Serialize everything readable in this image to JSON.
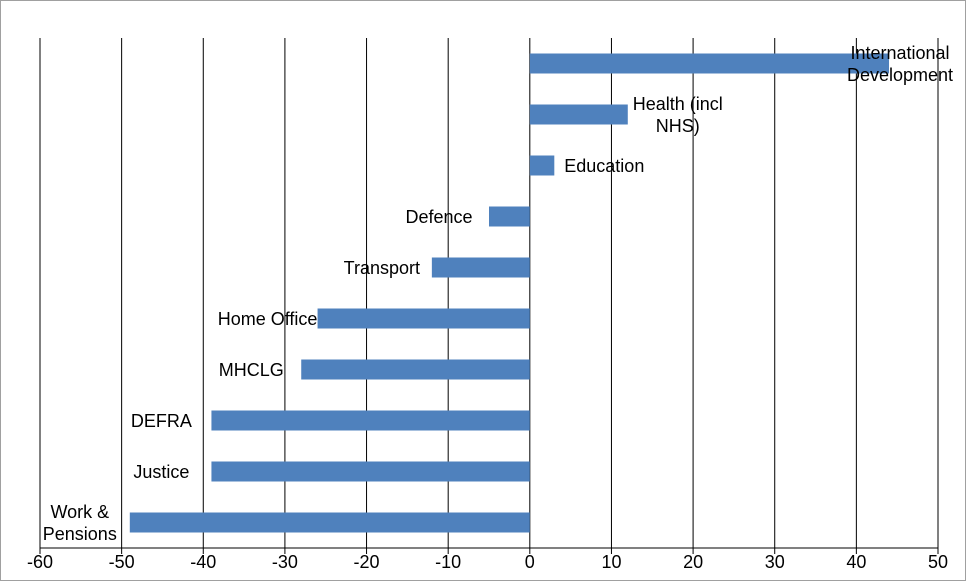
{
  "chart_data": {
    "type": "bar",
    "orientation": "horizontal",
    "categories": [
      "International Development",
      "Health (incl NHS)",
      "Education",
      "Defence",
      "Transport",
      "Home Office",
      "MHCLG",
      "DEFRA",
      "Justice",
      "Work & Pensions"
    ],
    "values": [
      44,
      12,
      3,
      -5,
      -12,
      -26,
      -28,
      -39,
      -39,
      -49
    ],
    "color": "#4f81bd",
    "xlim": [
      -60,
      50
    ],
    "xticks": [
      -60,
      -50,
      -40,
      -30,
      -20,
      -10,
      0,
      10,
      20,
      30,
      40,
      50
    ],
    "grid": true
  }
}
